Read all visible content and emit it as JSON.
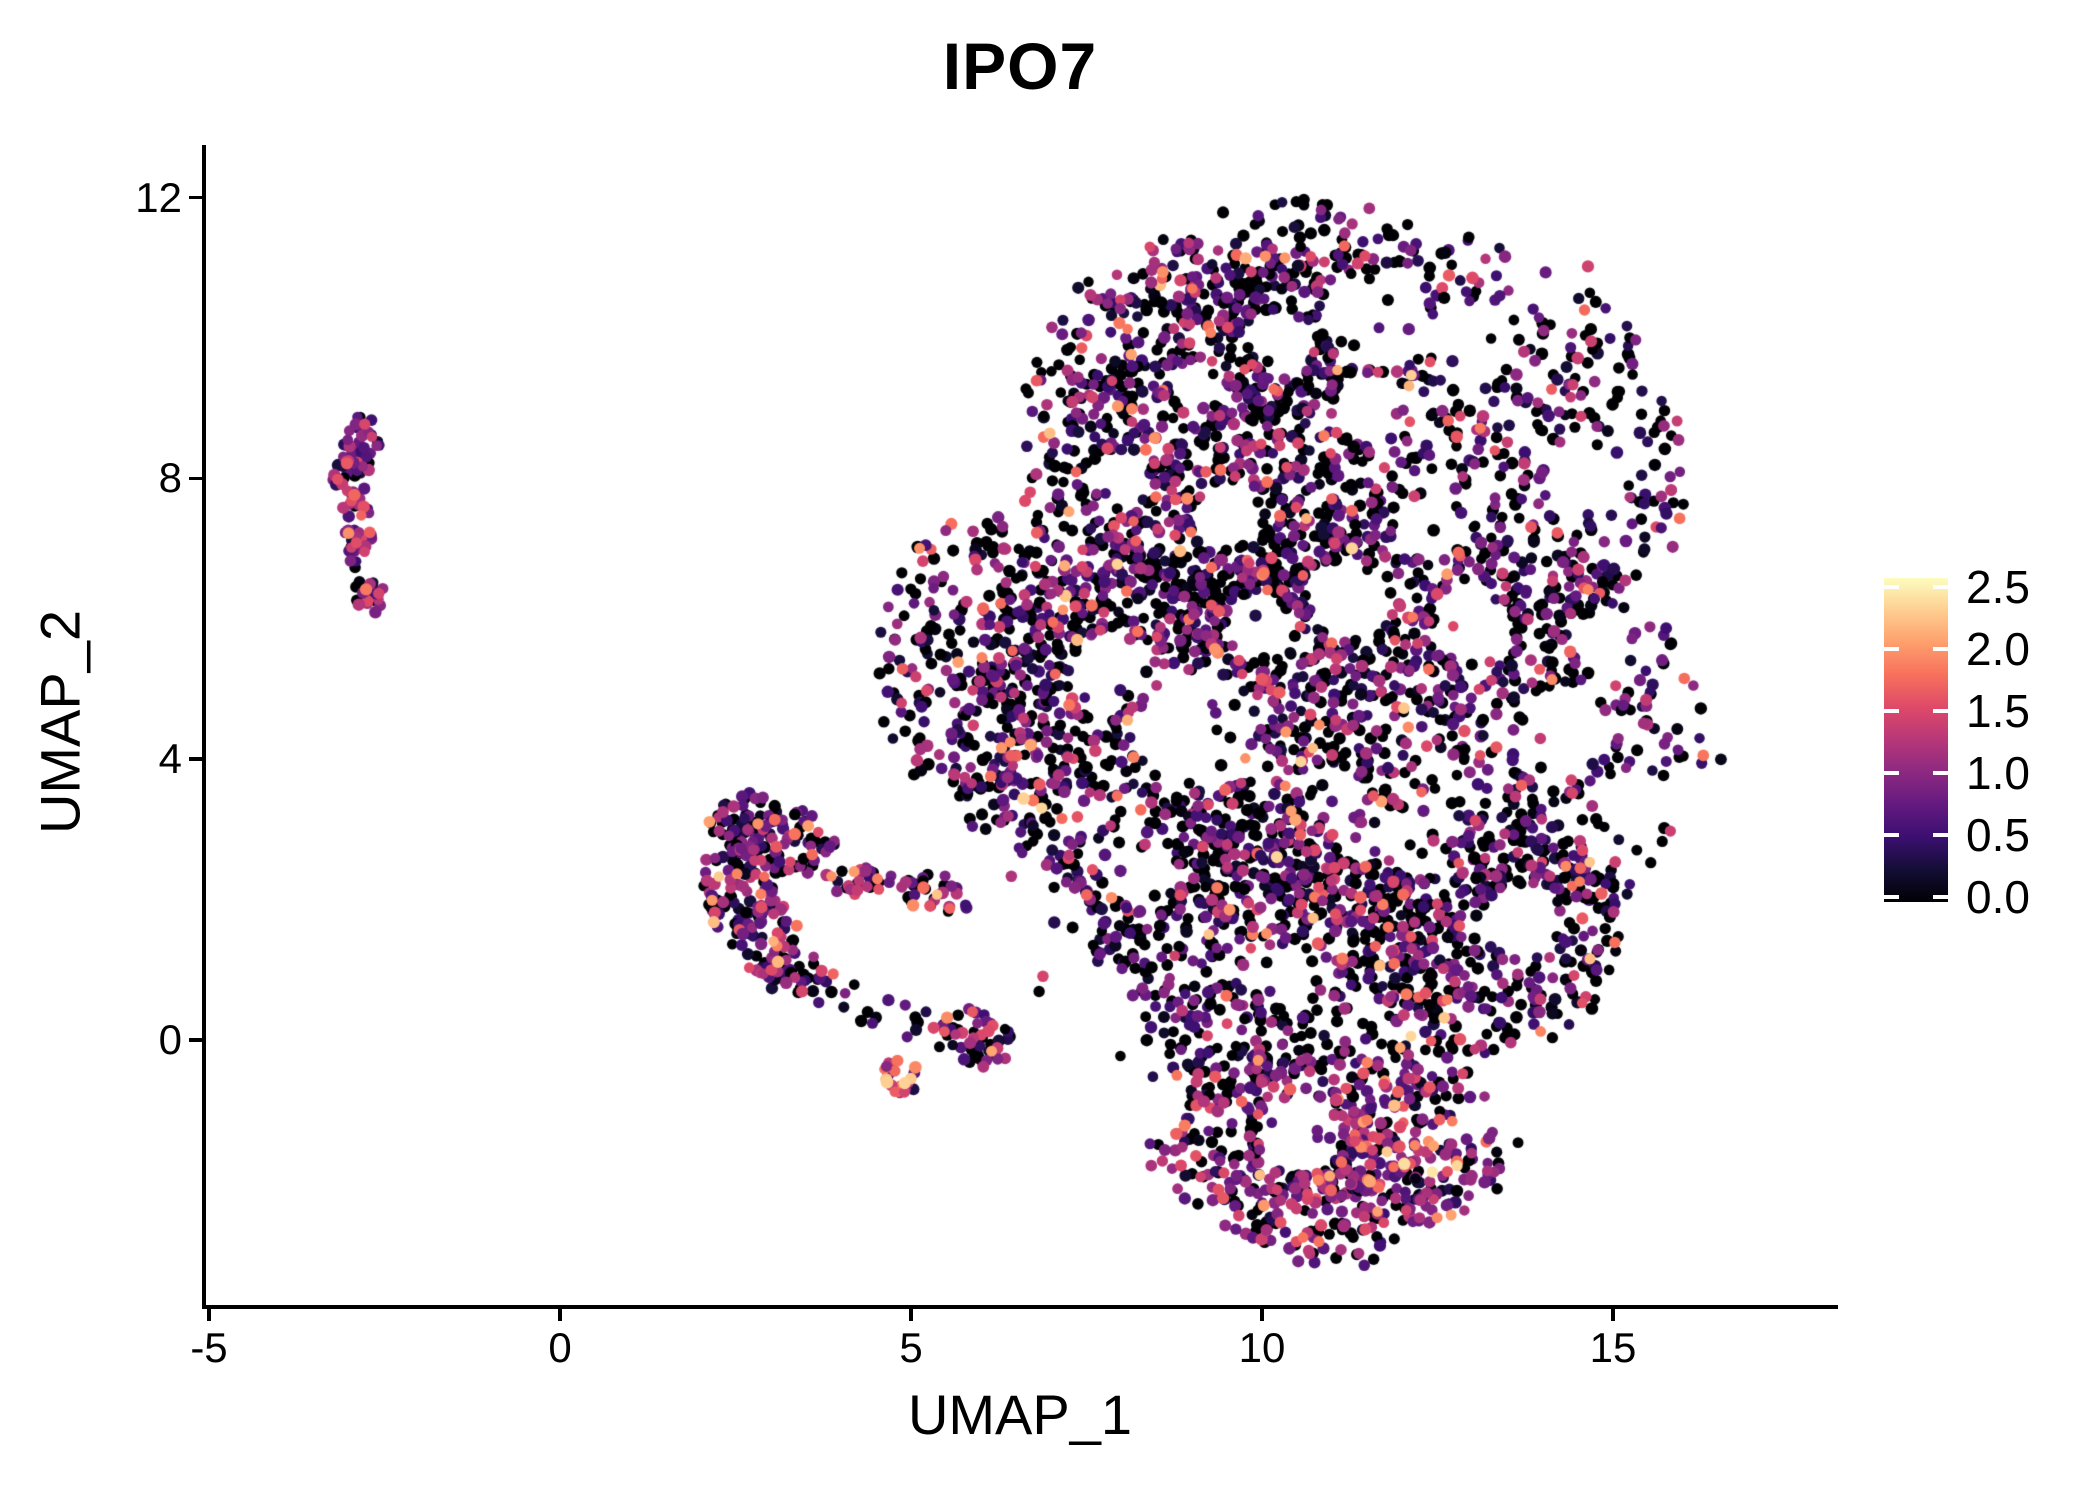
{
  "title": "IPO7",
  "axes": {
    "x": {
      "label": "UMAP_1",
      "tick_labels": [
        "-5",
        "0",
        "5",
        "10",
        "15"
      ],
      "tick_values": [
        -5,
        0,
        5,
        10,
        15
      ]
    },
    "y": {
      "label": "UMAP_2",
      "tick_labels": [
        "12",
        "8",
        "4",
        "0"
      ],
      "tick_values": [
        12,
        8,
        4,
        0
      ]
    }
  },
  "legend": {
    "tick_labels": [
      "2.5",
      "2.0",
      "1.5",
      "1.0",
      "0.5",
      "0.0"
    ],
    "tick_values": [
      2.5,
      2.0,
      1.5,
      1.0,
      0.5,
      0.0
    ],
    "colormap": "magma",
    "domain": [
      0,
      2.5
    ]
  },
  "colors": {
    "background": "#ffffff",
    "axis": "#000000",
    "text": "#000000",
    "colorbar_tick": "#ffffff",
    "magma_stops": [
      "#000004",
      "#140e36",
      "#3b0f70",
      "#641a80",
      "#8c2981",
      "#b73779",
      "#de4968",
      "#f7705c",
      "#fe9f6d",
      "#fece91",
      "#fcfdbf"
    ]
  },
  "chart_data": {
    "type": "scatter",
    "title": "IPO7",
    "xlabel": "UMAP_1",
    "ylabel": "UMAP_2",
    "xlim": [
      -5.1,
      18.2
    ],
    "ylim": [
      -3.8,
      12.9
    ],
    "grid": false,
    "legend_position": "right",
    "color_scale": {
      "name": "magma",
      "domain": [
        0,
        2.5
      ],
      "ticks": [
        0.0,
        0.5,
        1.0,
        1.5,
        2.0,
        2.5
      ]
    },
    "seed": 42,
    "point_radius_px": 5.6,
    "n_points_approx": 6500,
    "clusters": [
      {
        "name": "main-blob",
        "expr": {
          "p0": 0.4,
          "mu": 0.72,
          "sd": 0.5,
          "hot": 0.02
        },
        "blobs": [
          {
            "c": [
              11.6,
              8.1
            ],
            "r": [
              4.5,
              3.5
            ],
            "rot": 0,
            "n": 1250
          },
          {
            "c": [
              9.2,
              8.5
            ],
            "r": [
              2.7,
              3.0
            ],
            "rot": 0,
            "n": 750
          },
          {
            "c": [
              12.2,
              4.3
            ],
            "r": [
              4.1,
              3.3
            ],
            "rot": 0,
            "n": 1150
          },
          {
            "c": [
              8.7,
              4.3
            ],
            "r": [
              3.0,
              3.2
            ],
            "rot": 0,
            "n": 850
          },
          {
            "c": [
              6.3,
              5.2
            ],
            "r": [
              1.8,
              2.3
            ],
            "rot": 10,
            "n": 420
          },
          {
            "c": [
              9.8,
              1.1
            ],
            "r": [
              3.1,
              1.9
            ],
            "rot": 0,
            "n": 600
          },
          {
            "c": [
              13.2,
              1.6
            ],
            "r": [
              2.0,
              1.8
            ],
            "rot": 0,
            "n": 420
          },
          {
            "c": [
              10.6,
              10.5
            ],
            "r": [
              2.3,
              1.5
            ],
            "rot": 0,
            "n": 230
          }
        ]
      },
      {
        "name": "bottom-lobe",
        "expr": {
          "p0": 0.22,
          "mu": 0.95,
          "sd": 0.45,
          "hot": 0.04
        },
        "blobs": [
          {
            "c": [
              10.0,
              -1.3
            ],
            "r": [
              1.8,
              1.3
            ],
            "rot": 0,
            "n": 260
          },
          {
            "c": [
              12.1,
              -1.4
            ],
            "r": [
              1.5,
              1.3
            ],
            "rot": 0,
            "n": 250
          },
          {
            "c": [
              11.0,
              -2.2
            ],
            "r": [
              1.7,
              1.0
            ],
            "rot": 0,
            "n": 240
          }
        ]
      },
      {
        "name": "midleft-wedge",
        "expr": {
          "p0": 0.27,
          "mu": 0.8,
          "sd": 0.5,
          "hot": 0.03
        },
        "blobs": [
          {
            "c": [
              2.6,
              3.1
            ],
            "r": [
              0.5,
              0.45
            ],
            "rot": 0,
            "n": 55
          },
          {
            "c": [
              3.2,
              2.85
            ],
            "r": [
              0.75,
              0.5
            ],
            "rot": -15,
            "n": 95
          },
          {
            "c": [
              2.55,
              2.15
            ],
            "r": [
              0.55,
              0.8
            ],
            "rot": 0,
            "n": 90
          },
          {
            "c": [
              2.95,
              1.5
            ],
            "r": [
              0.5,
              0.6
            ],
            "rot": 0,
            "n": 60
          },
          {
            "c": [
              3.3,
              1.05
            ],
            "r": [
              0.45,
              0.45
            ],
            "rot": 0,
            "n": 40
          }
        ]
      },
      {
        "name": "midleft-strand",
        "expr": {
          "p0": 0.25,
          "mu": 0.9,
          "sd": 0.45,
          "hot": 0.05
        },
        "blobs": [
          {
            "c": [
              4.2,
              2.25
            ],
            "r": [
              0.85,
              0.2
            ],
            "rot": 0,
            "n": 45
          },
          {
            "c": [
              5.35,
              2.1
            ],
            "r": [
              0.55,
              0.28
            ],
            "rot": -10,
            "n": 35
          }
        ]
      },
      {
        "name": "sparse-trail",
        "expr": {
          "p0": 0.3,
          "mu": 0.8,
          "sd": 0.5,
          "hot": 0.05
        },
        "blobs": [
          {
            "c": [
              3.9,
              0.75
            ],
            "r": [
              0.45,
              0.35
            ],
            "rot": 0,
            "n": 10
          },
          {
            "c": [
              4.6,
              0.35
            ],
            "r": [
              0.5,
              0.35
            ],
            "rot": 0,
            "n": 10
          },
          {
            "c": [
              5.15,
              0.15
            ],
            "r": [
              0.3,
              0.3
            ],
            "rot": 0,
            "n": 6
          }
        ]
      },
      {
        "name": "small-clump-right",
        "expr": {
          "p0": 0.33,
          "mu": 0.85,
          "sd": 0.5,
          "hot": 0.04
        },
        "blobs": [
          {
            "c": [
              5.85,
              0.05
            ],
            "r": [
              0.6,
              0.42
            ],
            "rot": -20,
            "n": 65
          }
        ]
      },
      {
        "name": "tiny-clump",
        "expr": {
          "p0": 0.12,
          "mu": 1.2,
          "sd": 0.5,
          "hot": 0.15
        },
        "blobs": [
          {
            "c": [
              4.85,
              -0.52
            ],
            "r": [
              0.25,
              0.28
            ],
            "rot": 0,
            "n": 24
          }
        ]
      },
      {
        "name": "left-small-cluster",
        "expr": {
          "p0": 0.12,
          "mu": 0.9,
          "sd": 0.5,
          "hot": 0.05
        },
        "blobs": [
          {
            "c": [
              -2.83,
              8.45
            ],
            "r": [
              0.3,
              0.45
            ],
            "rot": 0,
            "n": 42
          },
          {
            "c": [
              -3.0,
              7.9
            ],
            "r": [
              0.24,
              0.4
            ],
            "rot": 0,
            "n": 30
          },
          {
            "c": [
              -2.86,
              7.35
            ],
            "r": [
              0.24,
              0.45
            ],
            "rot": 0,
            "n": 30
          },
          {
            "c": [
              -2.9,
              6.9
            ],
            "r": [
              0.15,
              0.2
            ],
            "rot": 0,
            "n": 7
          },
          {
            "c": [
              -2.75,
              6.33
            ],
            "r": [
              0.24,
              0.3
            ],
            "rot": 0,
            "n": 26
          }
        ]
      }
    ],
    "holes": [
      [
        9.05,
        4.4,
        0.85
      ],
      [
        7.8,
        5.2,
        0.55
      ],
      [
        11.6,
        10.3,
        0.75
      ],
      [
        13.0,
        9.9,
        0.6
      ],
      [
        10.3,
        9.9,
        0.45
      ],
      [
        11.5,
        9.0,
        0.5
      ],
      [
        14.5,
        8.0,
        0.5
      ],
      [
        11.2,
        6.3,
        0.55
      ],
      [
        13.0,
        5.9,
        0.55
      ],
      [
        14.3,
        4.4,
        0.6
      ],
      [
        12.3,
        2.9,
        0.5
      ],
      [
        13.7,
        1.7,
        0.55
      ],
      [
        10.3,
        0.9,
        0.45
      ],
      [
        9.5,
        7.4,
        0.5
      ],
      [
        8.3,
        2.3,
        0.45
      ],
      [
        15.8,
        6.3,
        0.4
      ],
      [
        10.6,
        -1.4,
        0.5
      ],
      [
        8.0,
        8.0,
        0.4
      ],
      [
        12.4,
        7.3,
        0.45
      ],
      [
        10.0,
        5.9,
        0.5
      ],
      [
        11.0,
        3.5,
        0.45
      ],
      [
        9.1,
        9.3,
        0.4
      ],
      [
        15.2,
        3.3,
        0.45
      ],
      [
        14.8,
        5.7,
        0.4
      ],
      [
        6.9,
        1.6,
        0.7
      ],
      [
        7.6,
        0.4,
        0.7
      ],
      [
        8.4,
        -0.9,
        0.55
      ],
      [
        13.4,
        -0.85,
        0.6
      ],
      [
        6.2,
        2.3,
        0.5
      ]
    ]
  }
}
